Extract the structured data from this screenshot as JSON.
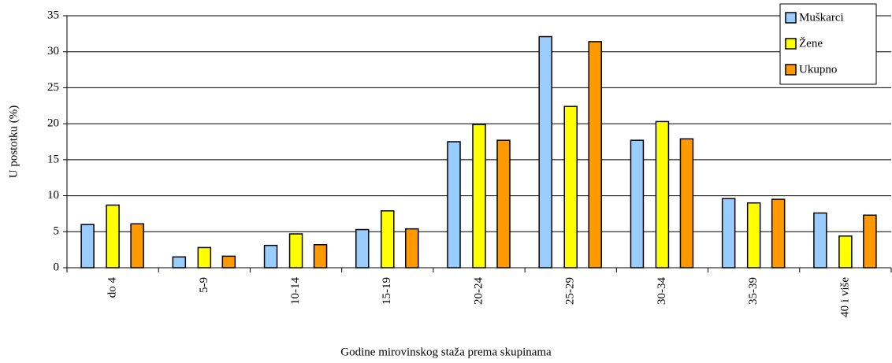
{
  "chart_data": {
    "type": "bar",
    "x_label": "Godine mirovinskog staža prema skupinama",
    "y_label": "U postotku (%)",
    "categories": [
      "do 4",
      "5-9",
      "10-14",
      "15-19",
      "20-24",
      "25-29",
      "30-34",
      "35-39",
      "40 i više"
    ],
    "series": [
      {
        "name": "Muškarci",
        "color": "#99ccff",
        "values": [
          6.0,
          1.5,
          3.1,
          5.3,
          17.5,
          32.1,
          17.7,
          9.6,
          7.6
        ]
      },
      {
        "name": "Žene",
        "color": "#ffff00",
        "values": [
          8.7,
          2.8,
          4.7,
          7.9,
          19.9,
          22.4,
          20.3,
          9.0,
          4.4
        ]
      },
      {
        "name": "Ukupno",
        "color": "#ff9900",
        "values": [
          6.1,
          1.6,
          3.2,
          5.4,
          17.7,
          31.4,
          17.9,
          9.5,
          7.3
        ]
      }
    ],
    "ylim": [
      0,
      35
    ],
    "yticks": [
      0,
      5,
      10,
      15,
      20,
      25,
      30,
      35
    ],
    "grid": true,
    "legend": "top-right"
  }
}
